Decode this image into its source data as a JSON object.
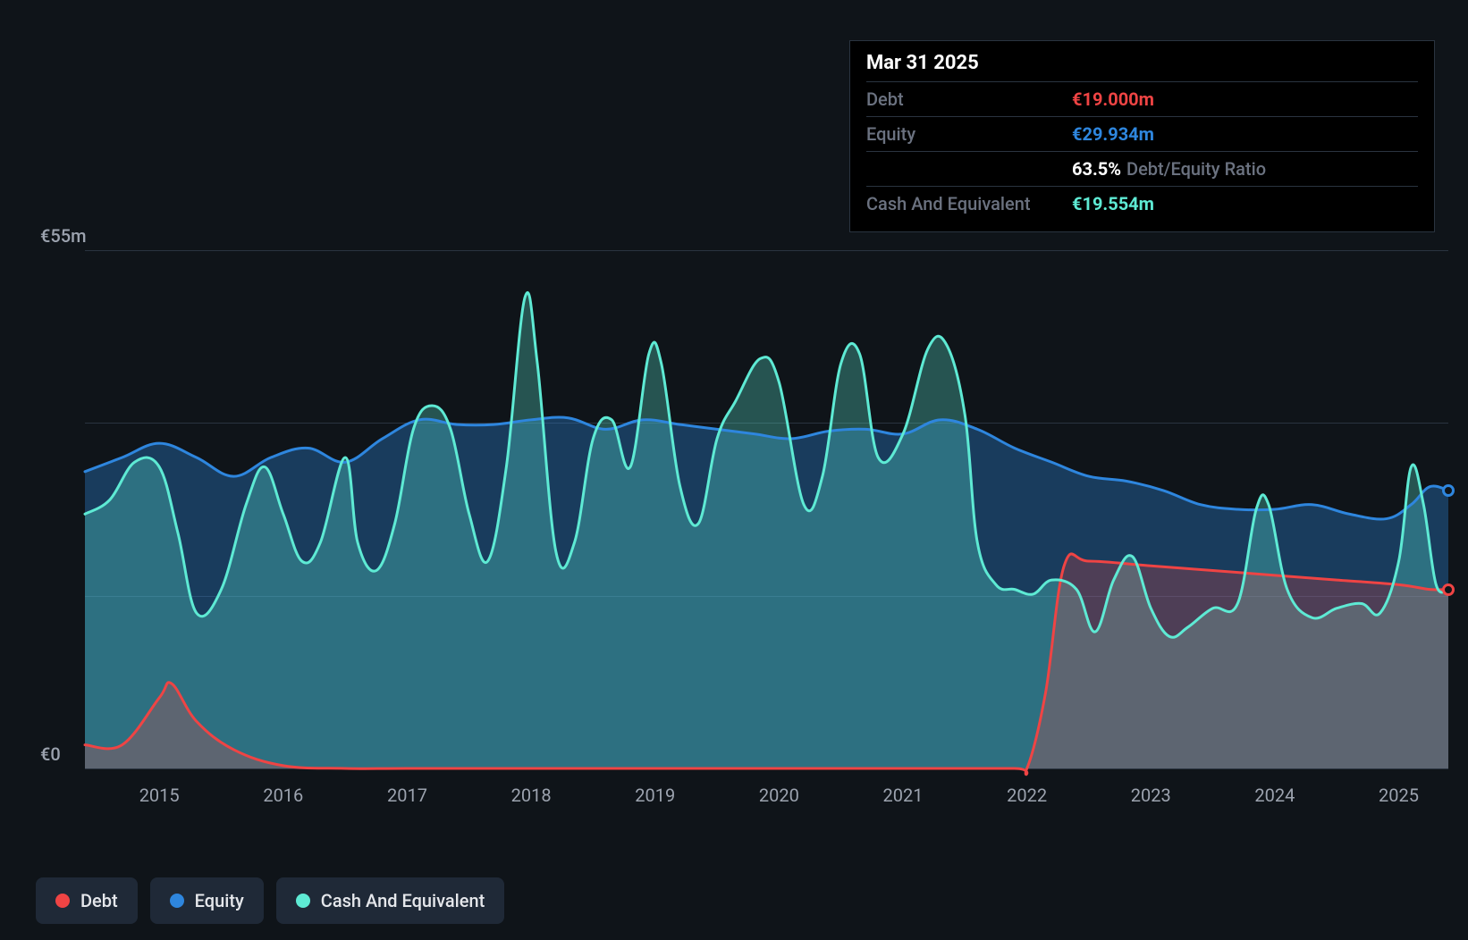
{
  "chart": {
    "type": "area",
    "background_color": "#0f1419",
    "grid_color": "#2a3440",
    "axis_label_color": "#9ca3af",
    "y_axis": {
      "min": 0,
      "max": 55,
      "labels": [
        {
          "value": 55,
          "text": "€55m"
        },
        {
          "value": 0,
          "text": "€0"
        }
      ],
      "gridlines": [
        0,
        18.3,
        36.7,
        55
      ]
    },
    "x_axis": {
      "min": 2014.4,
      "max": 2025.4,
      "labels": [
        "2015",
        "2016",
        "2017",
        "2018",
        "2019",
        "2020",
        "2021",
        "2022",
        "2023",
        "2024",
        "2025"
      ]
    },
    "series": {
      "debt": {
        "label": "Debt",
        "color": "#ef4444",
        "fill_opacity": 0.25,
        "line_width": 3,
        "points": [
          [
            2014.4,
            2.5
          ],
          [
            2014.7,
            2.5
          ],
          [
            2015.0,
            7.5
          ],
          [
            2015.1,
            9.0
          ],
          [
            2015.3,
            5.0
          ],
          [
            2015.6,
            2.0
          ],
          [
            2016.0,
            0.3
          ],
          [
            2016.5,
            0
          ],
          [
            2017.0,
            0
          ],
          [
            2018.0,
            0
          ],
          [
            2019.0,
            0
          ],
          [
            2020.0,
            0
          ],
          [
            2021.0,
            0
          ],
          [
            2021.9,
            0
          ],
          [
            2022.0,
            0
          ],
          [
            2022.15,
            8.0
          ],
          [
            2022.3,
            21.5
          ],
          [
            2022.5,
            22.0
          ],
          [
            2023.0,
            21.5
          ],
          [
            2023.5,
            21.0
          ],
          [
            2024.0,
            20.5
          ],
          [
            2024.5,
            20.0
          ],
          [
            2025.0,
            19.5
          ],
          [
            2025.25,
            19.0
          ],
          [
            2025.4,
            19.0
          ]
        ]
      },
      "equity": {
        "label": "Equity",
        "color": "#2e86de",
        "fill_opacity": 0.35,
        "line_width": 3,
        "points": [
          [
            2014.4,
            31.5
          ],
          [
            2014.7,
            33.0
          ],
          [
            2015.0,
            34.5
          ],
          [
            2015.3,
            33.0
          ],
          [
            2015.6,
            31.0
          ],
          [
            2015.9,
            33.0
          ],
          [
            2016.2,
            34.0
          ],
          [
            2016.5,
            32.5
          ],
          [
            2016.8,
            35.0
          ],
          [
            2017.1,
            37.0
          ],
          [
            2017.4,
            36.5
          ],
          [
            2017.7,
            36.5
          ],
          [
            2018.0,
            37.0
          ],
          [
            2018.3,
            37.2
          ],
          [
            2018.6,
            36.0
          ],
          [
            2018.9,
            37.0
          ],
          [
            2019.2,
            36.5
          ],
          [
            2019.5,
            36.0
          ],
          [
            2019.8,
            35.5
          ],
          [
            2020.1,
            35.0
          ],
          [
            2020.4,
            35.8
          ],
          [
            2020.7,
            36.0
          ],
          [
            2021.0,
            35.5
          ],
          [
            2021.3,
            37.0
          ],
          [
            2021.6,
            36.0
          ],
          [
            2021.9,
            34.0
          ],
          [
            2022.2,
            32.5
          ],
          [
            2022.5,
            31.0
          ],
          [
            2022.8,
            30.5
          ],
          [
            2023.1,
            29.5
          ],
          [
            2023.4,
            28.0
          ],
          [
            2023.7,
            27.5
          ],
          [
            2024.0,
            27.5
          ],
          [
            2024.3,
            28.0
          ],
          [
            2024.6,
            27.0
          ],
          [
            2024.9,
            26.5
          ],
          [
            2025.1,
            28.0
          ],
          [
            2025.25,
            29.9
          ],
          [
            2025.4,
            29.5
          ]
        ]
      },
      "cash": {
        "label": "Cash And Equivalent",
        "color": "#5eead4",
        "fill_opacity": 0.3,
        "line_width": 3,
        "points": [
          [
            2014.4,
            27.0
          ],
          [
            2014.6,
            28.5
          ],
          [
            2014.8,
            32.5
          ],
          [
            2015.0,
            32.0
          ],
          [
            2015.15,
            25.0
          ],
          [
            2015.3,
            16.5
          ],
          [
            2015.5,
            19.0
          ],
          [
            2015.7,
            28.0
          ],
          [
            2015.85,
            32.0
          ],
          [
            2016.0,
            27.0
          ],
          [
            2016.15,
            22.0
          ],
          [
            2016.3,
            24.0
          ],
          [
            2016.5,
            33.0
          ],
          [
            2016.6,
            24.0
          ],
          [
            2016.75,
            21.0
          ],
          [
            2016.9,
            26.0
          ],
          [
            2017.05,
            36.0
          ],
          [
            2017.2,
            38.5
          ],
          [
            2017.35,
            36.0
          ],
          [
            2017.5,
            27.0
          ],
          [
            2017.65,
            22.0
          ],
          [
            2017.8,
            32.0
          ],
          [
            2017.95,
            50.0
          ],
          [
            2018.05,
            43.0
          ],
          [
            2018.2,
            23.0
          ],
          [
            2018.35,
            24.0
          ],
          [
            2018.5,
            35.0
          ],
          [
            2018.65,
            37.0
          ],
          [
            2018.8,
            32.0
          ],
          [
            2018.95,
            44.0
          ],
          [
            2019.05,
            43.0
          ],
          [
            2019.2,
            30.0
          ],
          [
            2019.35,
            26.0
          ],
          [
            2019.5,
            35.0
          ],
          [
            2019.65,
            39.0
          ],
          [
            2019.85,
            43.5
          ],
          [
            2020.0,
            41.0
          ],
          [
            2020.2,
            28.0
          ],
          [
            2020.35,
            31.0
          ],
          [
            2020.5,
            43.0
          ],
          [
            2020.65,
            44.0
          ],
          [
            2020.8,
            33.0
          ],
          [
            2021.0,
            35.5
          ],
          [
            2021.2,
            44.5
          ],
          [
            2021.35,
            45.0
          ],
          [
            2021.5,
            37.5
          ],
          [
            2021.6,
            24.0
          ],
          [
            2021.75,
            19.5
          ],
          [
            2021.9,
            19.0
          ],
          [
            2022.05,
            18.5
          ],
          [
            2022.2,
            20.0
          ],
          [
            2022.4,
            19.0
          ],
          [
            2022.55,
            14.5
          ],
          [
            2022.7,
            20.0
          ],
          [
            2022.85,
            22.5
          ],
          [
            2023.0,
            17.0
          ],
          [
            2023.15,
            14.0
          ],
          [
            2023.3,
            15.0
          ],
          [
            2023.5,
            17.0
          ],
          [
            2023.7,
            17.5
          ],
          [
            2023.85,
            27.5
          ],
          [
            2023.95,
            28.0
          ],
          [
            2024.1,
            19.0
          ],
          [
            2024.3,
            16.0
          ],
          [
            2024.5,
            17.0
          ],
          [
            2024.7,
            17.5
          ],
          [
            2024.85,
            16.5
          ],
          [
            2025.0,
            22.0
          ],
          [
            2025.1,
            32.0
          ],
          [
            2025.2,
            28.0
          ],
          [
            2025.3,
            19.554
          ],
          [
            2025.4,
            19.0
          ]
        ]
      }
    },
    "end_markers": [
      {
        "series": "equity",
        "x": 2025.4,
        "y": 29.5
      },
      {
        "series": "debt",
        "x": 2025.4,
        "y": 19.0
      }
    ]
  },
  "tooltip": {
    "title": "Mar 31 2025",
    "rows": [
      {
        "label": "Debt",
        "value": "€19.000m",
        "color": "#ef4444"
      },
      {
        "label": "Equity",
        "value": "€29.934m",
        "color": "#2e86de"
      },
      {
        "label": "",
        "value": "63.5%",
        "suffix": "Debt/Equity Ratio",
        "color": "#ffffff"
      },
      {
        "label": "Cash And Equivalent",
        "value": "€19.554m",
        "color": "#5eead4"
      }
    ]
  },
  "legend": {
    "items": [
      {
        "label": "Debt",
        "color": "#ef4444"
      },
      {
        "label": "Equity",
        "color": "#2e86de"
      },
      {
        "label": "Cash And Equivalent",
        "color": "#5eead4"
      }
    ]
  }
}
